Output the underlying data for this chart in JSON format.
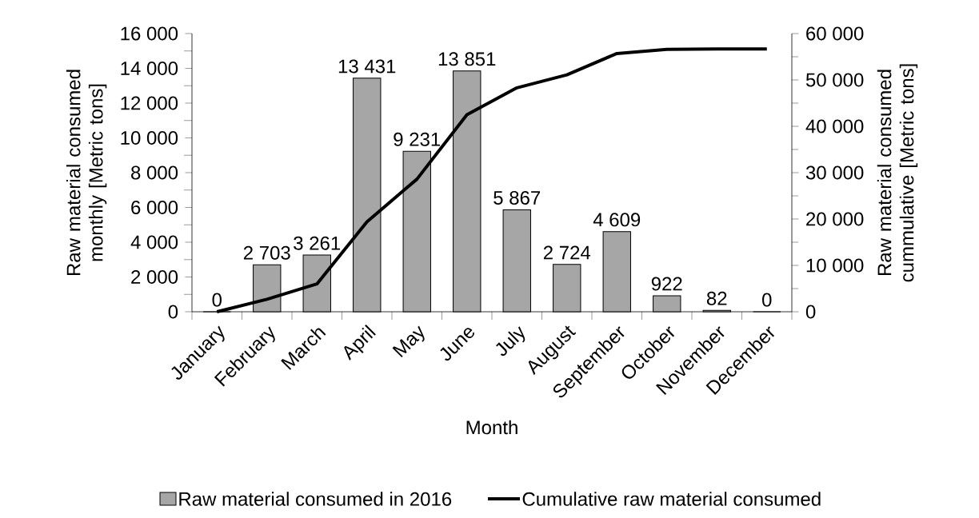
{
  "chart_data": {
    "type": "bar",
    "xlabel": "Month",
    "ylabel": "Raw material consumed monthly [Metric tons]",
    "y2label": "Raw material consumed cummulative [Metric tons]",
    "categories": [
      "January",
      "February",
      "March",
      "April",
      "May",
      "June",
      "July",
      "August",
      "September",
      "October",
      "November",
      "December"
    ],
    "series": [
      {
        "name": "Raw material consumed in 2016",
        "color": "#a6a6a6",
        "values": [
          0,
          2703,
          3261,
          13431,
          9231,
          13851,
          5867,
          2724,
          4609,
          922,
          82,
          0
        ],
        "value_labels": [
          "0",
          "2 703",
          "3 261",
          "13 431",
          "9 231",
          "13 851",
          "5 867",
          "2 724",
          "4 609",
          "922",
          "82",
          "0"
        ]
      },
      {
        "name": "Cumulative raw material consumed",
        "type": "line",
        "axis": "y2",
        "color": "#000000",
        "values": [
          0,
          2700,
          6000,
          19400,
          28600,
          42500,
          48300,
          51100,
          55700,
          56600,
          56700,
          56700
        ]
      }
    ],
    "ylim": [
      0,
      16000
    ],
    "yticks": [
      0,
      {
        "value": 2000,
        "label": "2 000"
      },
      {
        "value": 4000,
        "label": "4 000"
      },
      {
        "value": 6000,
        "label": "6 000"
      },
      {
        "value": 8000,
        "label": "8 000"
      },
      {
        "value": 10000,
        "label": "10 000"
      },
      {
        "value": 12000,
        "label": "12 000"
      },
      {
        "value": 14000,
        "label": "14 000"
      },
      {
        "value": 16000,
        "label": "16 000"
      }
    ],
    "y2lim": [
      0,
      60000
    ],
    "y2ticks": [
      0,
      {
        "value": 10000,
        "label": "10 000"
      },
      {
        "value": 20000,
        "label": "20 000"
      },
      {
        "value": 30000,
        "label": "30 000"
      },
      {
        "value": 40000,
        "label": "40 000"
      },
      {
        "value": 50000,
        "label": "50 000"
      },
      {
        "value": 60000,
        "label": "60 000"
      }
    ],
    "legend": "bottom",
    "grid": false
  }
}
